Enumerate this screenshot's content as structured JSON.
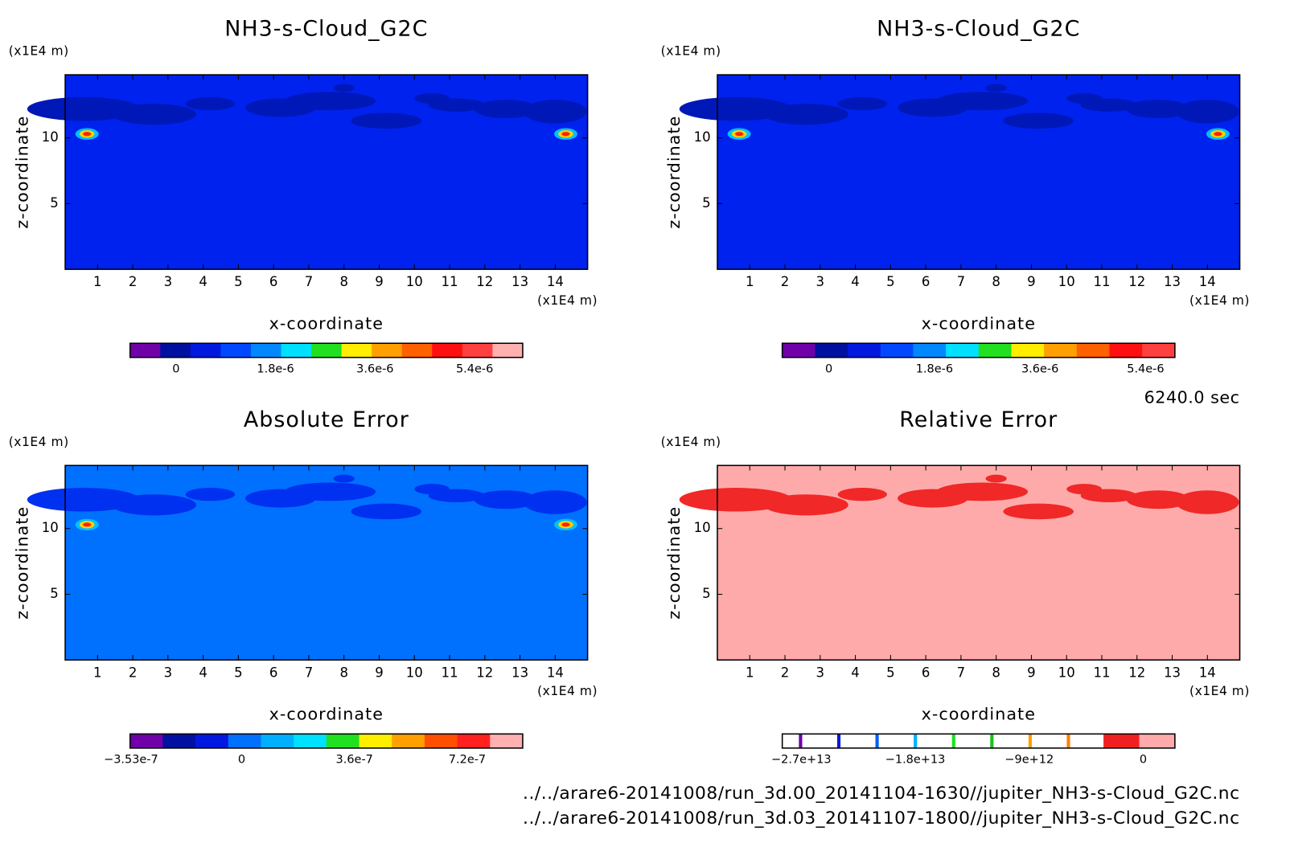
{
  "panels": [
    {
      "title": "NH3-s-Cloud_G2C",
      "y_unit": "(x1E4 m)",
      "x_unit": "(x1E4 m)",
      "xlabel": "x-coordinate",
      "ylabel": "z-coordinate",
      "xlim": [
        0.08,
        14.92
      ],
      "ylim": [
        0,
        14.8
      ],
      "xticks": [
        1,
        2,
        3,
        4,
        5,
        6,
        7,
        8,
        9,
        10,
        11,
        12,
        13,
        14
      ],
      "yticks": [
        5,
        10
      ],
      "background": "#0022ee",
      "pattern_color": "#0018b8",
      "hot": true,
      "colorbar": {
        "lim": [
          -8.3e-07,
          6.27e-06
        ],
        "colors": [
          "#7000a8",
          "#0010a0",
          "#0018e0",
          "#0048ff",
          "#0088ff",
          "#00e0ff",
          "#20e020",
          "#ffee00",
          "#ffa000",
          "#ff6000",
          "#ff1010",
          "#ff4040",
          "#ffb0b0"
        ],
        "ticks": [
          0,
          {
            "value": 1.8e-06,
            "label": "1.8e-6"
          },
          {
            "value": 3.6e-06,
            "label": "3.6e-6"
          },
          {
            "value": 5.4e-06,
            "label": "5.4e-6"
          }
        ]
      }
    },
    {
      "title": "NH3-s-Cloud_G2C",
      "y_unit": "(x1E4 m)",
      "x_unit": "(x1E4 m)",
      "xlabel": "x-coordinate",
      "ylabel": "z-coordinate",
      "xlim": [
        0.08,
        14.92
      ],
      "ylim": [
        0,
        14.8
      ],
      "xticks": [
        1,
        2,
        3,
        4,
        5,
        6,
        7,
        8,
        9,
        10,
        11,
        12,
        13,
        14
      ],
      "yticks": [
        5,
        10
      ],
      "background": "#0022ee",
      "pattern_color": "#0018b8",
      "hot": true,
      "colorbar": {
        "lim": [
          -7.95e-07,
          5.9e-06
        ],
        "colors": [
          "#7000a8",
          "#0010a0",
          "#0018e0",
          "#0048ff",
          "#0088ff",
          "#00e0ff",
          "#20e020",
          "#ffee00",
          "#ffa000",
          "#ff6000",
          "#ff1010",
          "#ff4040"
        ],
        "ticks": [
          0,
          {
            "value": 1.8e-06,
            "label": "1.8e-6"
          },
          {
            "value": 3.6e-06,
            "label": "3.6e-6"
          },
          {
            "value": 5.4e-06,
            "label": "5.4e-6"
          }
        ]
      }
    },
    {
      "title": "Absolute Error",
      "y_unit": "(x1E4 m)",
      "x_unit": "(x1E4 m)",
      "xlabel": "x-coordinate",
      "ylabel": "z-coordinate",
      "xlim": [
        0.08,
        14.92
      ],
      "ylim": [
        0,
        14.8
      ],
      "xticks": [
        1,
        2,
        3,
        4,
        5,
        6,
        7,
        8,
        9,
        10,
        11,
        12,
        13,
        14
      ],
      "yticks": [
        5,
        10
      ],
      "background": "#0070ff",
      "pattern_color": "#0030f0",
      "hot": true,
      "colorbar": {
        "lim": [
          -3.56e-07,
          8.97e-07
        ],
        "colors": [
          "#7000a8",
          "#0010a0",
          "#0018e0",
          "#0070ff",
          "#00b0ff",
          "#00e0ff",
          "#20e020",
          "#ffee00",
          "#ffa000",
          "#ff5000",
          "#ff2020",
          "#ffb0b0"
        ],
        "ticks": [
          {
            "value": -3.53e-07,
            "label": "−3.53e-7"
          },
          0,
          {
            "value": 3.6e-07,
            "label": "3.6e-7"
          },
          {
            "value": 7.2e-07,
            "label": "7.2e-7"
          }
        ]
      }
    },
    {
      "title": "Relative Error",
      "y_unit": "(x1E4 m)",
      "x_unit": "(x1E4 m)",
      "xlabel": "x-coordinate",
      "ylabel": "z-coordinate",
      "xlim": [
        0.08,
        14.92
      ],
      "ylim": [
        0,
        14.8
      ],
      "xticks": [
        1,
        2,
        3,
        4,
        5,
        6,
        7,
        8,
        9,
        10,
        11,
        12,
        13,
        14
      ],
      "yticks": [
        5,
        10
      ],
      "background": "#ffaaaa",
      "pattern_color": "#f02828",
      "hot": false,
      "colorbar": {
        "lim": [
          -28500000000000.0,
          2500000000000.0
        ],
        "colors": [
          "#ffffff",
          "#ffffff",
          "#ffffff",
          "#ffffff",
          "#ffffff",
          "#ffffff",
          "#ffffff",
          "#ffffff",
          "#ffffff",
          "#f02020",
          "#ffaaaa"
        ],
        "line_colors": [
          "#7000a8",
          "#0018e0",
          "#0060ff",
          "#00b0ff",
          "#20e020",
          "#20c020",
          "#ffa000",
          "#ff8000"
        ],
        "ticks": [
          {
            "value": -27000000000000.0,
            "label": "−2.7e+13"
          },
          {
            "value": -18000000000000.0,
            "label": "−1.8e+13"
          },
          {
            "value": -9000000000000.0,
            "label": "−9e+12"
          },
          0
        ]
      }
    }
  ],
  "time": "6240.0 sec",
  "files": [
    "../../arare6-20141008/run_3d.00_20141104-1630//jupiter_NH3-s-Cloud_G2C.nc",
    "../../arare6-20141008/run_3d.03_20141107-1800//jupiter_NH3-s-Cloud_G2C.nc"
  ]
}
